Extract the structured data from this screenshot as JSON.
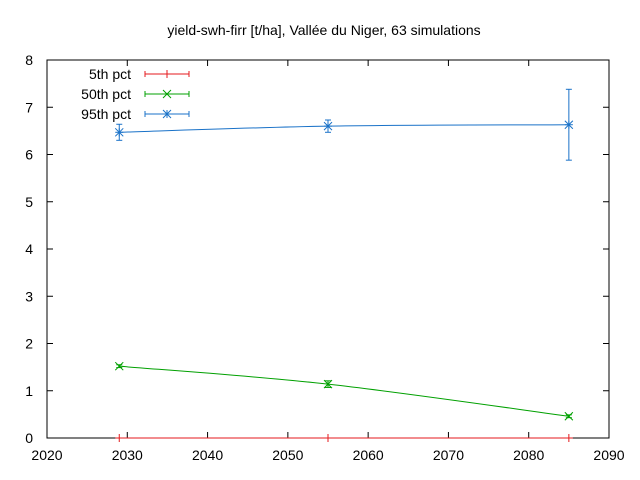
{
  "chart_data": {
    "type": "line",
    "title": "yield-swh-firr [t/ha], Vallée du Niger, 63 simulations",
    "xlabel": "",
    "ylabel": "",
    "xlim": [
      2020,
      2090
    ],
    "ylim": [
      0,
      8
    ],
    "x_ticks": [
      "2020",
      "2030",
      "2040",
      "2050",
      "2060",
      "2070",
      "2080",
      "2090"
    ],
    "y_ticks": [
      "0",
      "1",
      "2",
      "3",
      "4",
      "5",
      "6",
      "7",
      "8"
    ],
    "grid": false,
    "legend_position": "top-left",
    "x": [
      2029,
      2055,
      2085
    ],
    "series": [
      {
        "name": "5th pct",
        "color": "#e41a1c",
        "marker": "plus",
        "values": [
          0,
          0,
          0
        ],
        "err_low": [
          0,
          0,
          0
        ],
        "err_high": [
          0,
          0,
          0
        ]
      },
      {
        "name": "50th pct",
        "color": "#00a000",
        "marker": "x",
        "values": [
          1.52,
          1.14,
          0.46
        ],
        "err_low": [
          1.49,
          1.07,
          0.43
        ],
        "err_high": [
          1.55,
          1.21,
          0.49
        ]
      },
      {
        "name": "95th pct",
        "color": "#1a72c8",
        "marker": "star",
        "values": [
          6.47,
          6.6,
          6.63
        ],
        "err_low": [
          6.3,
          6.47,
          5.88
        ],
        "err_high": [
          6.64,
          6.73,
          7.38
        ]
      }
    ]
  }
}
